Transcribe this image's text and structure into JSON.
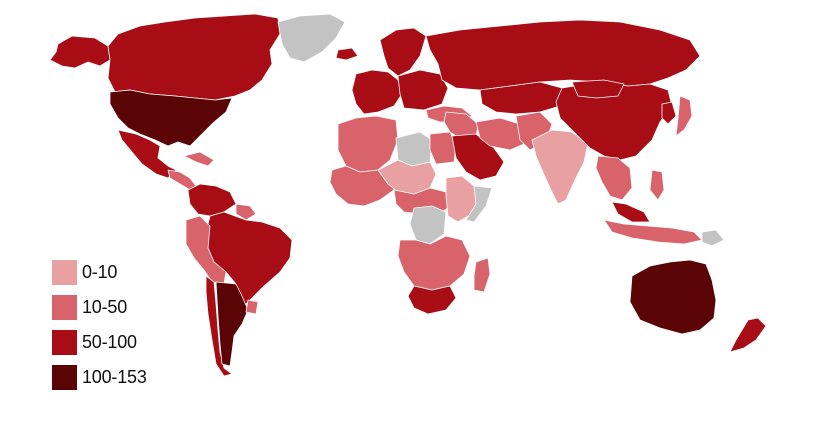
{
  "colors": {
    "background": "#ffffff",
    "no_data": "#c3c3c3",
    "border": "#ffffff"
  },
  "legend": {
    "items": [
      {
        "label": "0-10",
        "color": "#e9a0a3"
      },
      {
        "label": "10-50",
        "color": "#d8636b"
      },
      {
        "label": "50-100",
        "color": "#a80d16"
      },
      {
        "label": "100-153",
        "color": "#5b0405"
      }
    ]
  },
  "regions": [
    {
      "name": "alaska",
      "bin": "50-100"
    },
    {
      "name": "canada",
      "bin": "50-100"
    },
    {
      "name": "greenland",
      "bin": "no-data"
    },
    {
      "name": "usa",
      "bin": "100-153"
    },
    {
      "name": "mexico",
      "bin": "50-100"
    },
    {
      "name": "central-america",
      "bin": "10-50"
    },
    {
      "name": "caribbean",
      "bin": "10-50"
    },
    {
      "name": "colombia-venezuela",
      "bin": "50-100"
    },
    {
      "name": "guianas",
      "bin": "10-50"
    },
    {
      "name": "brazil",
      "bin": "50-100"
    },
    {
      "name": "peru-bolivia",
      "bin": "10-50"
    },
    {
      "name": "chile",
      "bin": "50-100"
    },
    {
      "name": "argentina",
      "bin": "100-153"
    },
    {
      "name": "uruguay",
      "bin": "10-50"
    },
    {
      "name": "iceland",
      "bin": "50-100"
    },
    {
      "name": "scandinavia",
      "bin": "50-100"
    },
    {
      "name": "western-europe",
      "bin": "50-100"
    },
    {
      "name": "eastern-europe",
      "bin": "50-100"
    },
    {
      "name": "russia",
      "bin": "50-100"
    },
    {
      "name": "turkey",
      "bin": "10-50"
    },
    {
      "name": "north-africa",
      "bin": "10-50"
    },
    {
      "name": "libya",
      "bin": "no-data"
    },
    {
      "name": "egypt",
      "bin": "10-50"
    },
    {
      "name": "west-africa",
      "bin": "10-50"
    },
    {
      "name": "sahel",
      "bin": "0-10"
    },
    {
      "name": "central-africa",
      "bin": "10-50"
    },
    {
      "name": "drc",
      "bin": "no-data"
    },
    {
      "name": "east-africa",
      "bin": "0-10"
    },
    {
      "name": "somalia",
      "bin": "no-data"
    },
    {
      "name": "southern-africa",
      "bin": "10-50"
    },
    {
      "name": "south-africa",
      "bin": "50-100"
    },
    {
      "name": "madagascar",
      "bin": "10-50"
    },
    {
      "name": "middle-east",
      "bin": "10-50"
    },
    {
      "name": "saudi-arabia",
      "bin": "50-100"
    },
    {
      "name": "iran",
      "bin": "10-50"
    },
    {
      "name": "central-asia",
      "bin": "50-100"
    },
    {
      "name": "pakistan-afghanistan",
      "bin": "10-50"
    },
    {
      "name": "india",
      "bin": "0-10"
    },
    {
      "name": "china",
      "bin": "50-100"
    },
    {
      "name": "mongolia",
      "bin": "50-100"
    },
    {
      "name": "korea",
      "bin": "50-100"
    },
    {
      "name": "japan",
      "bin": "10-50"
    },
    {
      "name": "southeast-asia",
      "bin": "10-50"
    },
    {
      "name": "malaysia",
      "bin": "50-100"
    },
    {
      "name": "indonesia",
      "bin": "10-50"
    },
    {
      "name": "papua",
      "bin": "no-data"
    },
    {
      "name": "philippines",
      "bin": "10-50"
    },
    {
      "name": "australia",
      "bin": "100-153"
    },
    {
      "name": "new-zealand",
      "bin": "50-100"
    }
  ]
}
